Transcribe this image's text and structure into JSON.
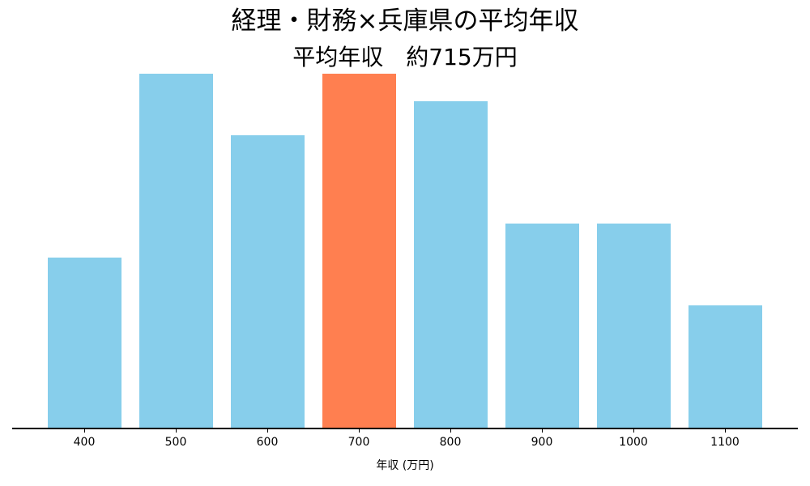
{
  "chart_data": {
    "type": "bar",
    "title": "経理・財務×兵庫県の平均年収",
    "subtitle": "平均年収　約715万円",
    "xlabel": "年収 (万円)",
    "ylabel": "",
    "categories": [
      "400",
      "500",
      "600",
      "700",
      "800",
      "900",
      "1000",
      "1100"
    ],
    "values": [
      25,
      52,
      43,
      52,
      48,
      30,
      30,
      18
    ],
    "highlight_category": "700",
    "colors": {
      "default": "#87CEEB",
      "highlight": "#FF7F50"
    },
    "ylim": [
      0,
      52
    ],
    "y_axis_visible": false,
    "grid": false,
    "legend": null
  }
}
